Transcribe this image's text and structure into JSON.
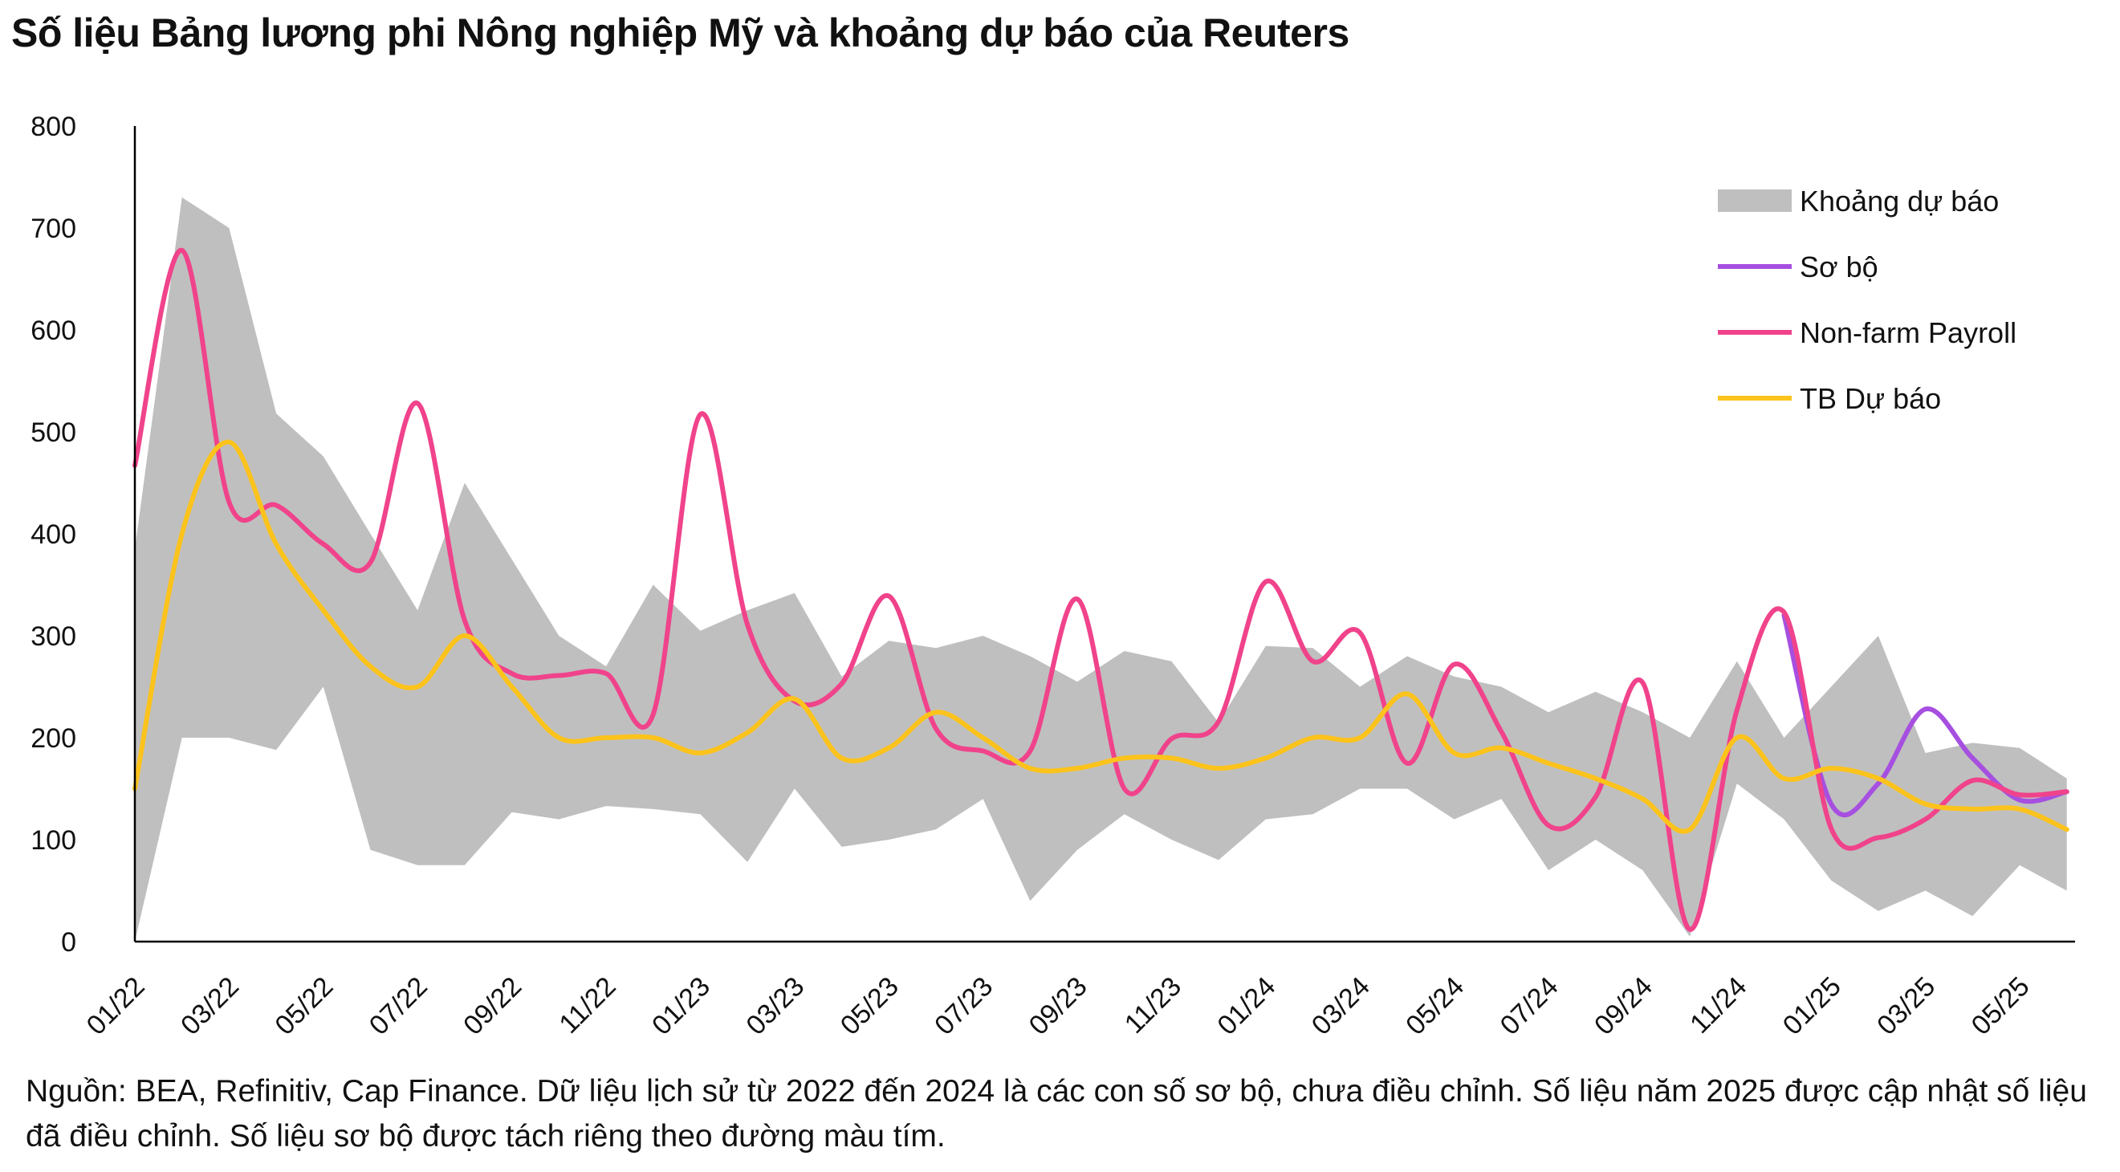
{
  "chart_data": {
    "type": "line",
    "title": "Số liệu Bảng lương phi Nông nghiệp Mỹ và khoảng dự báo của Reuters",
    "xlabel": "",
    "ylabel": "",
    "ylim": [
      0,
      800
    ],
    "yticks": [
      0,
      100,
      200,
      300,
      400,
      500,
      600,
      700,
      800
    ],
    "grid": false,
    "legend_position": "top-right",
    "x": [
      "01/22",
      "02/22",
      "03/22",
      "04/22",
      "05/22",
      "06/22",
      "07/22",
      "08/22",
      "09/22",
      "10/22",
      "11/22",
      "12/22",
      "01/23",
      "02/23",
      "03/23",
      "04/23",
      "05/23",
      "06/23",
      "07/23",
      "08/23",
      "09/23",
      "10/23",
      "11/23",
      "12/23",
      "01/24",
      "02/24",
      "03/24",
      "04/24",
      "05/24",
      "06/24",
      "07/24",
      "08/24",
      "09/24",
      "10/24",
      "11/24",
      "12/24",
      "01/25",
      "02/25",
      "03/25",
      "04/25",
      "05/25",
      "06/25"
    ],
    "xtick_labels": [
      "01/22",
      "03/22",
      "05/22",
      "07/22",
      "09/22",
      "11/22",
      "01/23",
      "03/23",
      "05/23",
      "07/23",
      "09/23",
      "11/23",
      "01/24",
      "03/24",
      "05/24",
      "07/24",
      "09/24",
      "11/24",
      "01/25",
      "03/25",
      "05/25"
    ],
    "band": {
      "name": "Khoảng dự báo",
      "color": "#bfbfbf",
      "low": [
        0,
        200,
        200,
        188,
        250,
        90,
        75,
        75,
        127,
        120,
        133,
        130,
        125,
        78,
        150,
        93,
        100,
        110,
        140,
        40,
        90,
        125,
        100,
        80,
        120,
        125,
        150,
        150,
        120,
        140,
        70,
        100,
        70,
        5,
        155,
        120,
        60,
        30,
        50,
        25,
        75,
        50
      ],
      "high": [
        385,
        730,
        700,
        518,
        476,
        400,
        325,
        450,
        375,
        300,
        270,
        350,
        305,
        325,
        342,
        260,
        295,
        288,
        300,
        280,
        255,
        285,
        275,
        215,
        290,
        288,
        250,
        280,
        260,
        250,
        225,
        245,
        225,
        200,
        275,
        200,
        250,
        300,
        185,
        195,
        190,
        160
      ]
    },
    "series": [
      {
        "name": "Sơ bộ",
        "color": "#a64fe0",
        "values": [
          null,
          null,
          null,
          null,
          null,
          null,
          null,
          null,
          null,
          null,
          null,
          null,
          null,
          null,
          null,
          null,
          null,
          null,
          null,
          null,
          null,
          null,
          null,
          null,
          null,
          null,
          null,
          null,
          null,
          null,
          null,
          null,
          null,
          null,
          null,
          320,
          135,
          155,
          228,
          180,
          139,
          147
        ]
      },
      {
        "name": "Non-farm Payroll",
        "color": "#f0438b",
        "values": [
          467,
          678,
          431,
          428,
          390,
          372,
          528,
          315,
          263,
          261,
          263,
          223,
          517,
          311,
          236,
          253,
          339,
          209,
          187,
          187,
          336,
          150,
          199,
          216,
          353,
          275,
          303,
          175,
          272,
          206,
          114,
          142,
          254,
          12,
          227,
          323,
          111,
          102,
          120,
          158,
          144,
          147
        ]
      },
      {
        "name": "TB Dự báo",
        "color": "#fcc31c",
        "values": [
          150,
          400,
          490,
          390,
          325,
          270,
          250,
          300,
          250,
          200,
          200,
          200,
          185,
          205,
          238,
          180,
          190,
          225,
          200,
          170,
          170,
          180,
          180,
          170,
          180,
          200,
          200,
          243,
          185,
          190,
          175,
          160,
          140,
          110,
          200,
          160,
          170,
          160,
          135,
          130,
          130,
          110
        ]
      }
    ]
  },
  "source_note": "Nguồn: BEA, Refinitiv, Cap Finance. Dữ liệu lịch sử từ 2022 đến 2024 là các con số sơ bộ, chưa điều chỉnh. Số liệu năm 2025 được cập nhật số liệu đã điều chỉnh. Số liệu sơ bộ được tách riêng theo đường màu tím."
}
